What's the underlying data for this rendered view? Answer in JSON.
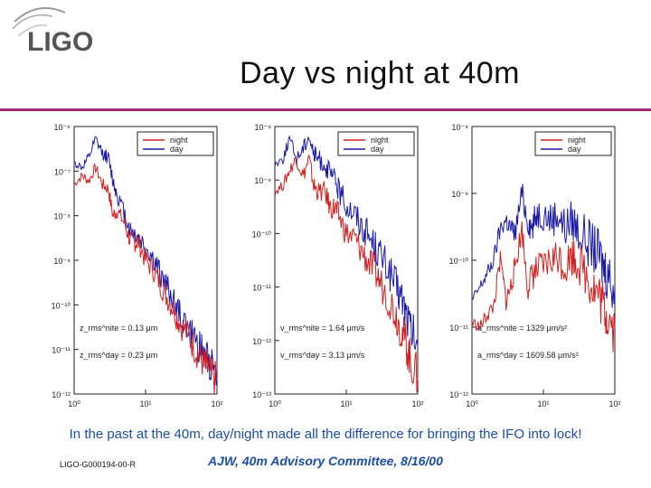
{
  "header": {
    "logo_text": "LIGO",
    "title": "Day vs night at 40m"
  },
  "caption": "In the past at the 40m, day/night made all the difference for bringing the IFO into lock!",
  "footer": {
    "doc_id": "LIGO-G000194-00-R",
    "credit": "AJW, 40m Advisory Committee, 8/16/00"
  },
  "colors": {
    "night": "#d42020",
    "day": "#1a1aa8",
    "rule": "#a32a7a",
    "caption": "#1a4ea8"
  },
  "chart_data": [
    {
      "type": "line",
      "x_scale": "log",
      "y_scale": "log",
      "xlim": [
        1,
        100
      ],
      "ylim": [
        1e-12,
        1e-06
      ],
      "x_ticks": [
        "10⁰",
        "10¹",
        "10²"
      ],
      "y_ticks": [
        "10⁻⁶",
        "10⁻⁷",
        "10⁻⁸",
        "10⁻⁹",
        "10⁻¹⁰",
        "10⁻¹¹",
        "10⁻¹²"
      ],
      "legend": {
        "placement": "top-right",
        "entries": [
          "night",
          "day"
        ]
      },
      "annotations": [
        {
          "text": "z_rms^nite = 0.13 μm"
        },
        {
          "text": "z_rms^day = 0.23 μm"
        }
      ],
      "series": [
        {
          "name": "night",
          "color": "#d42020",
          "x": [
            1,
            1.3,
            1.6,
            2,
            2.5,
            3,
            3.5,
            4,
            5,
            6,
            7,
            8,
            10,
            13,
            16,
            20,
            25,
            30,
            40,
            50,
            60,
            70,
            80,
            100
          ],
          "y": [
            5e-08,
            8e-08,
            6e-08,
            1.2e-07,
            5e-08,
            4e-08,
            1e-08,
            1.3e-08,
            7e-09,
            3e-09,
            2.5e-09,
            2.5e-09,
            1e-09,
            6e-10,
            3e-10,
            1.5e-10,
            8e-11,
            4e-11,
            2e-11,
            1e-11,
            6e-12,
            4e-12,
            3e-12,
            2e-12
          ]
        },
        {
          "name": "day",
          "color": "#1a1aa8",
          "x": [
            1,
            1.3,
            1.6,
            2,
            2.5,
            3,
            3.5,
            4,
            5,
            6,
            7,
            8,
            10,
            13,
            16,
            20,
            25,
            30,
            40,
            50,
            60,
            70,
            80,
            100
          ],
          "y": [
            1.5e-07,
            1.2e-07,
            2e-07,
            5e-07,
            2.5e-07,
            2e-07,
            6e-08,
            3e-08,
            1.2e-08,
            5e-09,
            4e-09,
            3e-09,
            2e-09,
            1e-09,
            5e-10,
            2.5e-10,
            1.2e-10,
            6e-11,
            3e-11,
            1.5e-11,
            1e-11,
            7e-12,
            5e-12,
            4e-12
          ]
        }
      ]
    },
    {
      "type": "line",
      "x_scale": "log",
      "y_scale": "log",
      "xlim": [
        1,
        100
      ],
      "ylim": [
        1e-13,
        1e-08
      ],
      "x_ticks": [
        "10⁰",
        "10¹",
        "10²"
      ],
      "y_ticks": [
        "10⁻⁸",
        "10⁻⁹",
        "10⁻¹⁰",
        "10⁻¹¹",
        "10⁻¹²",
        "10⁻¹³"
      ],
      "legend": {
        "placement": "top-right",
        "entries": [
          "night",
          "day"
        ]
      },
      "annotations": [
        {
          "text": "v_rms^nite = 1.64 μm/s"
        },
        {
          "text": "v_rms^day = 3.13 μm/s"
        }
      ],
      "series": [
        {
          "name": "night",
          "color": "#d42020",
          "x": [
            1,
            1.3,
            1.6,
            2,
            2.5,
            3,
            3.5,
            4,
            5,
            6,
            7,
            8,
            10,
            13,
            16,
            20,
            25,
            30,
            40,
            50,
            60,
            70,
            80,
            100
          ],
          "y": [
            6e-10,
            8e-10,
            1.5e-09,
            2.5e-09,
            1.2e-09,
            2.5e-09,
            8e-10,
            6e-10,
            6e-10,
            3e-10,
            3e-10,
            2e-10,
            1e-10,
            8e-11,
            5e-11,
            3e-11,
            2e-11,
            1.2e-11,
            6e-12,
            3e-12,
            1.5e-12,
            8e-13,
            4e-13,
            2e-13
          ]
        },
        {
          "name": "day",
          "color": "#1a1aa8",
          "x": [
            1,
            1.3,
            1.6,
            2,
            2.5,
            3,
            3.5,
            4,
            5,
            6,
            7,
            8,
            10,
            13,
            16,
            20,
            25,
            30,
            40,
            50,
            60,
            70,
            80,
            100
          ],
          "y": [
            2e-09,
            2.5e-09,
            6e-09,
            2.5e-09,
            4e-09,
            7e-09,
            3e-09,
            2.5e-09,
            2e-09,
            1.2e-09,
            1e-09,
            6e-10,
            3.5e-10,
            2.5e-10,
            1.5e-10,
            1e-10,
            6e-11,
            4e-11,
            2e-11,
            1e-11,
            6e-12,
            3e-12,
            1.5e-12,
            8e-13
          ]
        }
      ]
    },
    {
      "type": "line",
      "x_scale": "log",
      "y_scale": "log",
      "xlim": [
        1,
        100
      ],
      "ylim": [
        1e-12,
        1e-08
      ],
      "x_ticks": [
        "10⁰",
        "10¹",
        "10²"
      ],
      "y_ticks": [
        "10⁻⁸",
        "10⁻⁹",
        "10⁻¹⁰",
        "10⁻¹¹",
        "10⁻¹²"
      ],
      "legend": {
        "placement": "top-right",
        "entries": [
          "night",
          "day"
        ]
      },
      "annotations": [
        {
          "text": "a_rms^nite = 1329 μm/s²"
        },
        {
          "text": "a_rms^day = 1609.58 μm/s²"
        }
      ],
      "series": [
        {
          "name": "night",
          "color": "#d42020",
          "x": [
            1,
            1.3,
            1.6,
            2,
            2.5,
            3,
            3.5,
            4,
            5,
            6,
            7,
            8,
            10,
            13,
            16,
            20,
            25,
            30,
            40,
            50,
            60,
            70,
            80,
            100
          ],
          "y": [
            1.2e-11,
            1e-11,
            1.5e-11,
            2e-11,
            1e-10,
            2.5e-11,
            4e-11,
            8e-11,
            3e-10,
            4e-11,
            6e-11,
            7e-11,
            8e-11,
            1e-10,
            1.2e-10,
            8e-11,
            1.2e-10,
            1e-10,
            6e-11,
            4e-11,
            3e-11,
            2e-11,
            1.5e-11,
            1e-11
          ]
        },
        {
          "name": "day",
          "color": "#1a1aa8",
          "x": [
            1,
            1.3,
            1.6,
            2,
            2.5,
            3,
            3.5,
            4,
            5,
            6,
            7,
            8,
            10,
            13,
            16,
            20,
            25,
            30,
            40,
            50,
            60,
            70,
            80,
            100
          ],
          "y": [
            2.5e-11,
            4e-11,
            6e-11,
            1e-10,
            3e-10,
            4e-10,
            3e-10,
            2.5e-10,
            1e-09,
            4e-10,
            3e-10,
            5e-10,
            5e-10,
            4e-10,
            5e-10,
            3e-10,
            4e-10,
            3e-10,
            2e-10,
            1.5e-10,
            1.2e-10,
            8e-11,
            6e-11,
            4e-11
          ]
        }
      ]
    }
  ]
}
